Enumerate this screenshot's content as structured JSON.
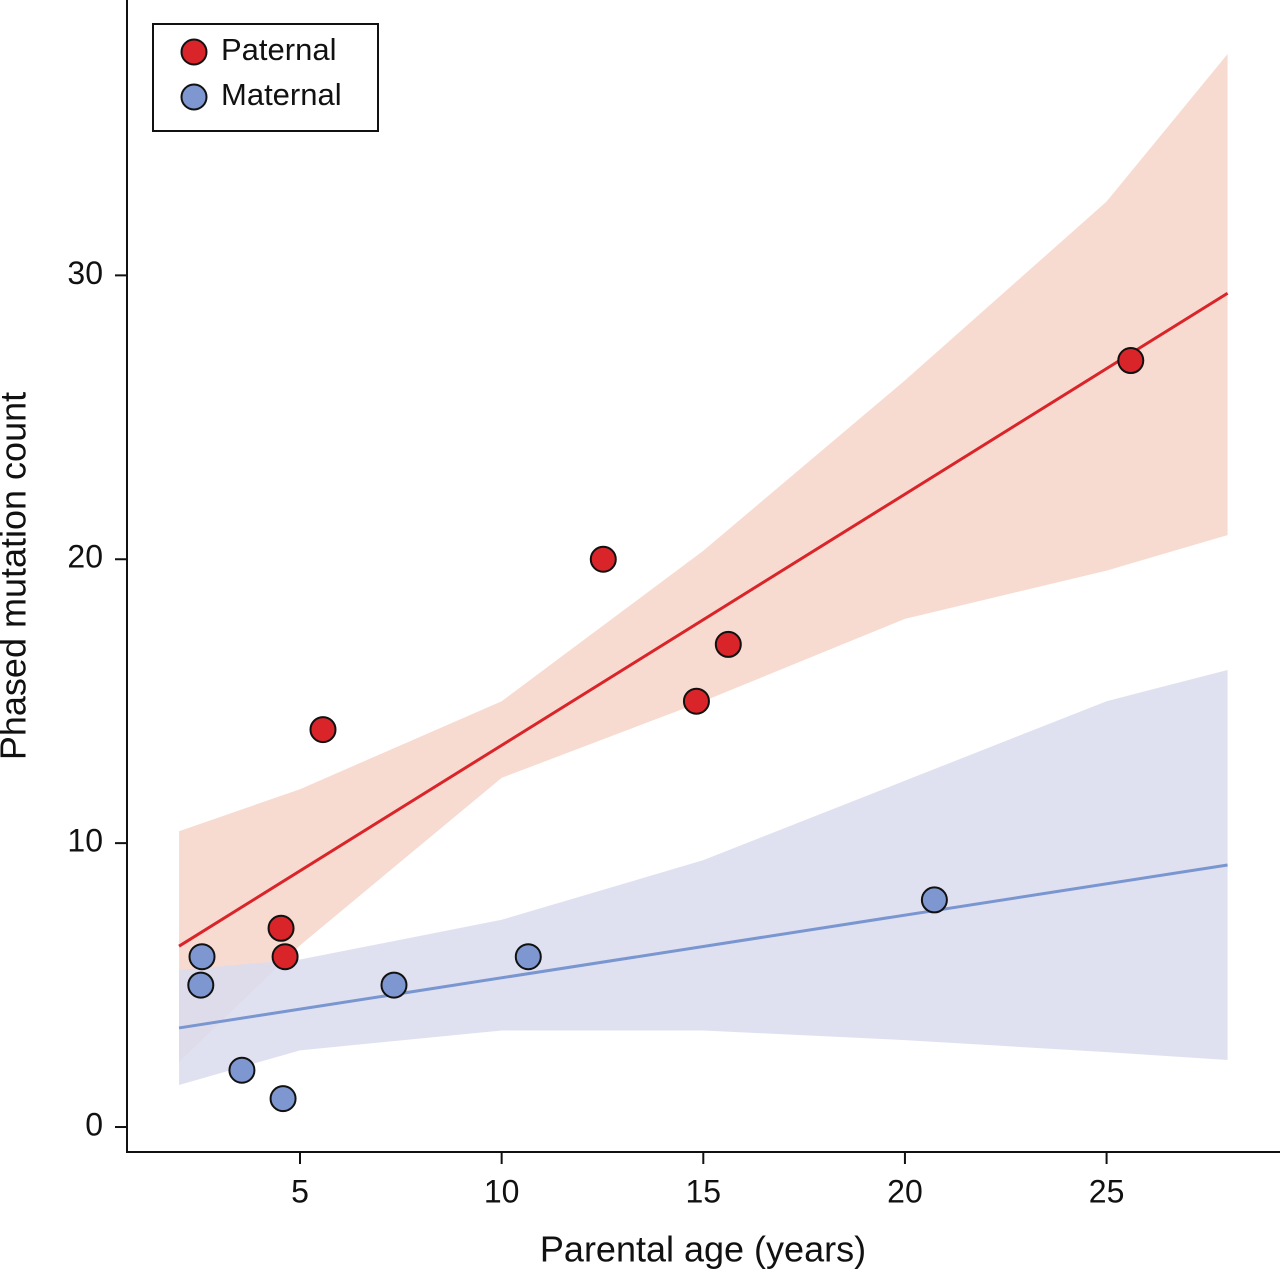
{
  "chart_data": {
    "type": "scatter",
    "x_label": "Parental age (years)",
    "y_label": "Phased mutation count",
    "xlim": [
      0.71,
      29.3
    ],
    "ylim": [
      -0.88,
      39.7
    ],
    "xticks": [
      5,
      10,
      15,
      20,
      25
    ],
    "yticks": [
      0,
      10,
      20,
      30
    ],
    "legend": "upper left",
    "series": [
      {
        "name": "Paternal",
        "color": "#d9242a",
        "line_color": "#d9242a",
        "band_color": "#f6d5c8",
        "x": [
          4.53,
          4.63,
          5.57,
          12.52,
          14.83,
          15.62,
          25.6
        ],
        "values": [
          7,
          6,
          14,
          20,
          15,
          17,
          27
        ],
        "fit_x": [
          2,
          28
        ],
        "fit_values": [
          6.37,
          29.37
        ],
        "band_x": [
          2,
          5,
          10,
          15,
          20,
          25,
          28
        ],
        "band_upper": [
          10.42,
          11.9,
          15.0,
          20.3,
          26.3,
          32.6,
          37.8
        ],
        "band_lower": [
          2.29,
          6.4,
          12.3,
          15.0,
          17.9,
          19.6,
          20.85
        ]
      },
      {
        "name": "Maternal",
        "color": "#7f97d0",
        "line_color": "#7a96d0",
        "band_color": "#d9dcef",
        "x": [
          2.57,
          2.54,
          3.56,
          4.58,
          7.33,
          10.66,
          20.73
        ],
        "values": [
          6,
          5,
          2,
          1,
          5,
          6,
          8
        ],
        "fit_x": [
          2,
          28
        ],
        "fit_values": [
          3.49,
          9.23
        ],
        "band_x": [
          2,
          5,
          10,
          15,
          20,
          25,
          28
        ],
        "band_upper": [
          5.53,
          5.9,
          7.3,
          9.4,
          12.2,
          15.0,
          16.1
        ],
        "band_lower": [
          1.48,
          2.7,
          3.4,
          3.4,
          3.06,
          2.64,
          2.36
        ]
      }
    ]
  }
}
